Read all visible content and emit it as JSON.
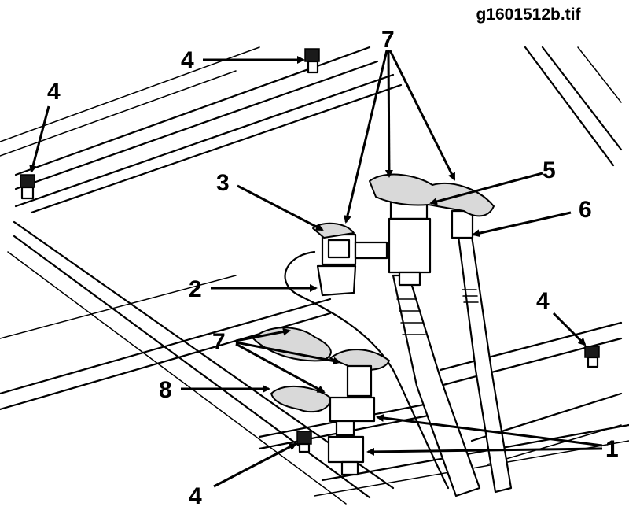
{
  "figure": {
    "file_label": "g1601512b.tif"
  },
  "callouts": {
    "c1": "1",
    "c2": "2",
    "c3": "3",
    "c4a": "4",
    "c4b": "4",
    "c4c": "4",
    "c4d": "4",
    "c5": "5",
    "c6": "6",
    "c7a": "7",
    "c7b": "7",
    "c8": "8"
  }
}
